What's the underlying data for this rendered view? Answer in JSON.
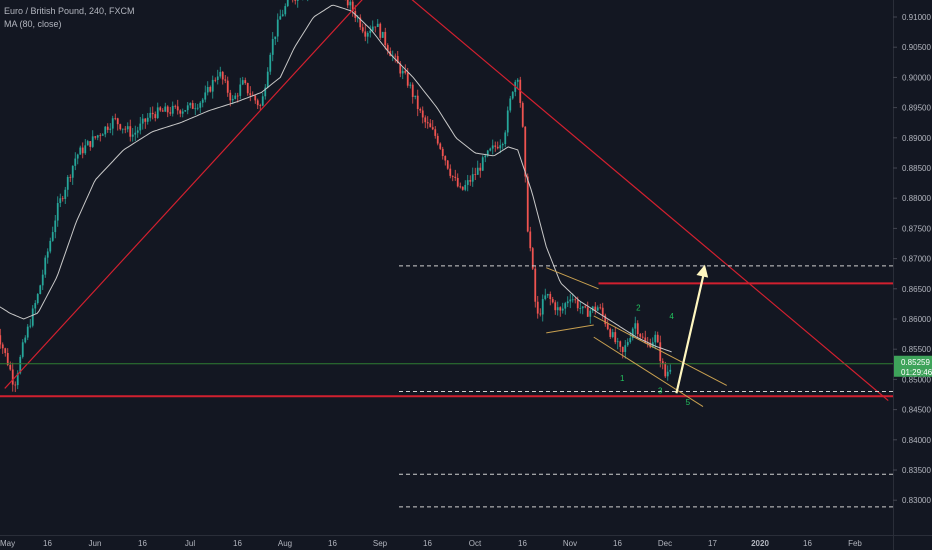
{
  "header": {
    "symbol_line": "Euro / British Pound, 240, FXCM",
    "indicator_line": "MA (80, close)"
  },
  "price_badge": {
    "price": "0.85259",
    "countdown": "01:29:46"
  },
  "colors": {
    "background": "#131722",
    "up_candle": "#26a69a",
    "down_candle": "#ef5350",
    "ma_line": "#c8c8c8",
    "trend_red": "#d2202f",
    "pattern_line": "#c8a050",
    "wave_label": "#22c55e",
    "arrow": "#fff7c0",
    "price_line": "#2e7d32",
    "badge_green": "#3ea35a",
    "axis_text": "#b2b5be"
  },
  "chart_data": {
    "type": "candlestick",
    "symbol": "EURGBP",
    "timeframe": "240",
    "y_axis": {
      "ticks": [
        "0.91000",
        "0.90500",
        "0.90000",
        "0.89500",
        "0.89000",
        "0.88500",
        "0.88000",
        "0.87500",
        "0.87000",
        "0.86500",
        "0.86000",
        "0.85500",
        "0.85000",
        "0.84500",
        "0.84000",
        "0.83500",
        "0.83000"
      ],
      "tick_values": [
        0.91,
        0.905,
        0.9,
        0.895,
        0.89,
        0.885,
        0.88,
        0.875,
        0.87,
        0.865,
        0.86,
        0.855,
        0.85,
        0.845,
        0.84,
        0.835,
        0.83
      ],
      "range": [
        0.8265,
        0.9125
      ]
    },
    "x_axis": {
      "ticks": [
        "May",
        "16",
        "Jun",
        "16",
        "Jul",
        "16",
        "Aug",
        "16",
        "Sep",
        "16",
        "Oct",
        "16",
        "Nov",
        "16",
        "Dec",
        "17",
        "2020",
        "16",
        "Feb"
      ],
      "tick_positions": [
        0,
        0.5,
        1,
        1.5,
        2,
        2.5,
        3,
        3.5,
        4,
        4.5,
        5,
        5.5,
        6,
        6.5,
        7,
        7.5,
        8,
        8.5,
        9
      ]
    },
    "price_path": [
      [
        -0.05,
        0.859
      ],
      [
        0.1,
        0.852
      ],
      [
        0.15,
        0.849
      ],
      [
        0.25,
        0.856
      ],
      [
        0.4,
        0.864
      ],
      [
        0.6,
        0.878
      ],
      [
        0.8,
        0.887
      ],
      [
        1.0,
        0.89
      ],
      [
        1.2,
        0.893
      ],
      [
        1.4,
        0.8905
      ],
      [
        1.6,
        0.894
      ],
      [
        1.8,
        0.8945
      ],
      [
        2.0,
        0.895
      ],
      [
        2.15,
        0.8965
      ],
      [
        2.3,
        0.901
      ],
      [
        2.45,
        0.896
      ],
      [
        2.55,
        0.899
      ],
      [
        2.75,
        0.895
      ],
      [
        2.85,
        0.905
      ],
      [
        2.95,
        0.91
      ],
      [
        3.05,
        0.913
      ],
      [
        3.3,
        0.915
      ],
      [
        3.55,
        0.915
      ],
      [
        3.7,
        0.9115
      ],
      [
        3.85,
        0.9075
      ],
      [
        3.95,
        0.909
      ],
      [
        4.05,
        0.906
      ],
      [
        4.15,
        0.903
      ],
      [
        4.3,
        0.899
      ],
      [
        4.45,
        0.893
      ],
      [
        4.6,
        0.89
      ],
      [
        4.75,
        0.884
      ],
      [
        4.85,
        0.881
      ],
      [
        5.0,
        0.884
      ],
      [
        5.15,
        0.8875
      ],
      [
        5.3,
        0.89
      ],
      [
        5.4,
        0.8985
      ],
      [
        5.45,
        0.9005
      ],
      [
        5.5,
        0.892
      ],
      [
        5.55,
        0.876
      ],
      [
        5.6,
        0.869
      ],
      [
        5.65,
        0.86
      ],
      [
        5.75,
        0.864
      ],
      [
        5.9,
        0.861
      ],
      [
        6.0,
        0.864
      ],
      [
        6.15,
        0.861
      ],
      [
        6.3,
        0.862
      ],
      [
        6.45,
        0.857
      ],
      [
        6.55,
        0.854
      ],
      [
        6.68,
        0.8595
      ],
      [
        6.8,
        0.8555
      ],
      [
        6.9,
        0.857
      ],
      [
        7.0,
        0.8505
      ],
      [
        7.08,
        0.853
      ]
    ],
    "moving_average": {
      "period": 80,
      "points": [
        [
          -0.05,
          0.8625
        ],
        [
          0.1,
          0.861
        ],
        [
          0.25,
          0.86
        ],
        [
          0.4,
          0.861
        ],
        [
          0.6,
          0.867
        ],
        [
          0.8,
          0.876
        ],
        [
          1.0,
          0.883
        ],
        [
          1.3,
          0.888
        ],
        [
          1.6,
          0.891
        ],
        [
          1.9,
          0.8925
        ],
        [
          2.2,
          0.8945
        ],
        [
          2.5,
          0.896
        ],
        [
          2.75,
          0.8975
        ],
        [
          2.95,
          0.9
        ],
        [
          3.1,
          0.905
        ],
        [
          3.3,
          0.91
        ],
        [
          3.5,
          0.912
        ],
        [
          3.7,
          0.911
        ],
        [
          3.9,
          0.908
        ],
        [
          4.1,
          0.904
        ],
        [
          4.35,
          0.9
        ],
        [
          4.6,
          0.895
        ],
        [
          4.8,
          0.89
        ],
        [
          5.0,
          0.8875
        ],
        [
          5.2,
          0.887
        ],
        [
          5.35,
          0.8885
        ],
        [
          5.45,
          0.888
        ],
        [
          5.6,
          0.881
        ],
        [
          5.75,
          0.872
        ],
        [
          5.9,
          0.866
        ],
        [
          6.1,
          0.863
        ],
        [
          6.3,
          0.861
        ],
        [
          6.5,
          0.859
        ],
        [
          6.7,
          0.857
        ],
        [
          6.9,
          0.8555
        ],
        [
          7.08,
          0.8545
        ]
      ]
    },
    "trend_lines": [
      {
        "name": "rising-trendline",
        "from": [
          0.05,
          0.8485
        ],
        "to": [
          3.85,
          0.9135
        ]
      },
      {
        "name": "falling-trendline",
        "from": [
          3.95,
          0.918
        ],
        "to": [
          9.35,
          0.8465
        ]
      }
    ],
    "horizontal_levels": [
      {
        "value": 0.8472,
        "style": "solid-red"
      },
      {
        "value": 0.8659,
        "style": "solid-red",
        "from_x": 6.3
      },
      {
        "value": 0.8688,
        "style": "dashed"
      },
      {
        "value": 0.848,
        "style": "dashed"
      },
      {
        "value": 0.8343,
        "style": "dashed"
      },
      {
        "value": 0.8289,
        "style": "dashed"
      },
      {
        "value": 0.85259,
        "style": "current-price"
      }
    ],
    "channel_lines": [
      [
        [
          5.75,
          0.8685
        ],
        [
          6.3,
          0.865
        ]
      ],
      [
        [
          5.75,
          0.8577
        ],
        [
          6.25,
          0.859
        ]
      ],
      [
        [
          6.25,
          0.8605
        ],
        [
          7.65,
          0.849
        ]
      ],
      [
        [
          6.25,
          0.857
        ],
        [
          7.4,
          0.8455
        ]
      ]
    ],
    "wave_labels": [
      {
        "label": "1",
        "x": 6.55,
        "y": 0.8497
      },
      {
        "label": "2",
        "x": 6.72,
        "y": 0.8614
      },
      {
        "label": "3",
        "x": 6.95,
        "y": 0.8477
      },
      {
        "label": "4",
        "x": 7.07,
        "y": 0.86
      },
      {
        "label": "5",
        "x": 7.24,
        "y": 0.8458
      }
    ],
    "projection_arrow": {
      "from": [
        7.12,
        0.8477
      ],
      "to": [
        7.42,
        0.869
      ]
    }
  }
}
